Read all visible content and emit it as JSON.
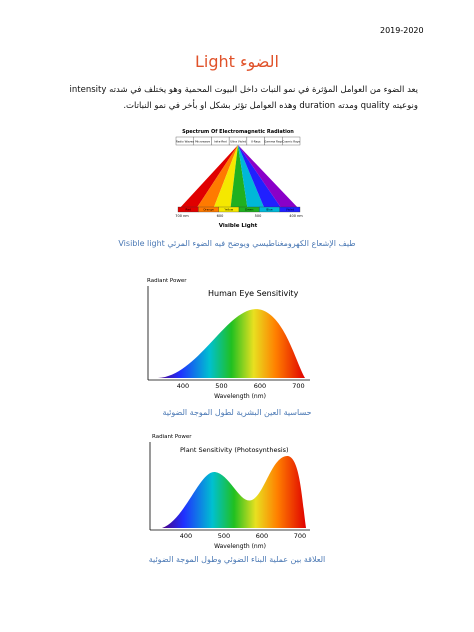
{
  "header": {
    "year": "2019-2020"
  },
  "title": "الضوء Light",
  "paragraph": "يعد الضوء من العوامل المؤثرة في نمو النبات داخل البيوت المحمية وهو يختلف في شدته intensity ونوعيته quality ومدته duration وهذه العوامل تؤثر بشكل او بأخر في نمو النباتات.",
  "figures": [
    {
      "title": "Spectrum Of Electromagnetic Radiation",
      "bands": [
        "Radio Waves",
        "Microwave",
        "Infra-Red",
        "Ultra Violet",
        "X-Rays",
        "Gamma Rays",
        "Cosmic Rays"
      ],
      "colors": [
        "Red",
        "Orange",
        "Yellow",
        "Green",
        "Blue",
        "Violet"
      ],
      "wavelengths": [
        "700 nm",
        "600",
        "500",
        "400 nm"
      ],
      "label": "Visible Light",
      "caption": "طيف الإشعاع الكهرومغناطيسي ويوضح فيه الضوء المرئي Visible light"
    },
    {
      "y_label": "Radiant Power",
      "title": "Human Eye Sensitivity",
      "xticks": [
        400,
        500,
        600,
        700
      ],
      "x_label": "Wavelength (nm)",
      "caption": "حساسية العين البشرية لطول الموجة الضوئية"
    },
    {
      "y_label": "Radiant Power",
      "title": "Plant Sensitivity (Photosynthesis)",
      "xticks": [
        400,
        500,
        600,
        700
      ],
      "x_label": "Wavelength (nm)",
      "caption": "العلاقة بين عملية البناء الضوئي وطول الموجة الضوئية"
    }
  ]
}
